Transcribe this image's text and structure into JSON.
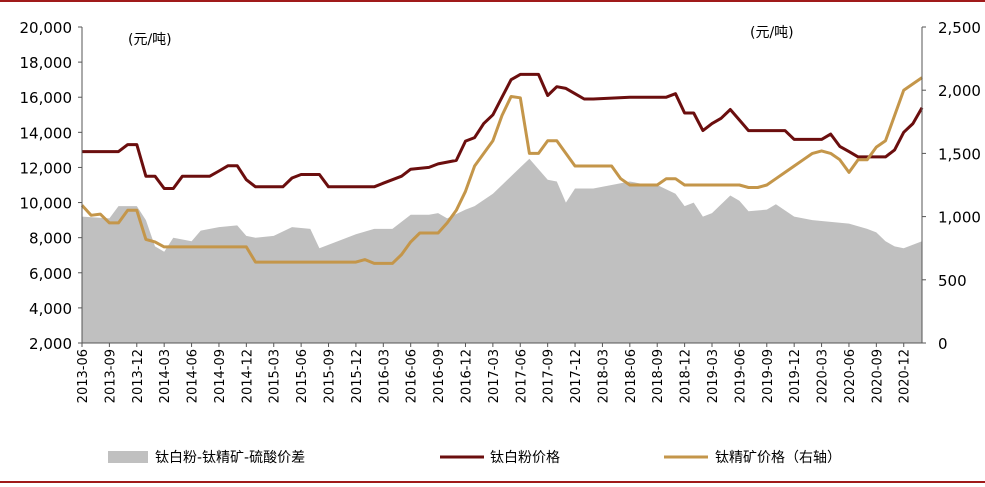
{
  "chart_data": {
    "type": "line",
    "left_unit": "(元/吨)",
    "right_unit": "(元/吨)",
    "left_axis": {
      "min": 2000,
      "max": 20000,
      "ticks": [
        "2,000",
        "4,000",
        "6,000",
        "8,000",
        "10,000",
        "12,000",
        "14,000",
        "16,000",
        "18,000",
        "20,000"
      ]
    },
    "right_axis": {
      "min": 0,
      "max": 2500,
      "ticks": [
        "0",
        "500",
        "1,000",
        "1,500",
        "2,000",
        "2,500"
      ]
    },
    "x_ticks": [
      "2013-06",
      "2013-09",
      "2013-12",
      "2014-03",
      "2014-06",
      "2014-09",
      "2014-12",
      "2015-03",
      "2015-06",
      "2015-09",
      "2015-12",
      "2016-03",
      "2016-06",
      "2016-09",
      "2016-12",
      "2017-03",
      "2017-06",
      "2017-09",
      "2017-12",
      "2018-03",
      "2018-06",
      "2018-09",
      "2018-12",
      "2019-03",
      "2019-06",
      "2019-09",
      "2019-12",
      "2020-03",
      "2020-06",
      "2020-09",
      "2020-12"
    ],
    "x_start": "2013-06",
    "x_end": "2021-02",
    "grid": false,
    "legend_position": "bottom",
    "series": [
      {
        "name": "钛白粉-钛精矿-硫酸价差",
        "type": "area",
        "axis": "left",
        "color": "#c0c0c0",
        "points": [
          [
            "2013-06",
            9200
          ],
          [
            "2013-09",
            9100
          ],
          [
            "2013-10",
            9800
          ],
          [
            "2013-12",
            9800
          ],
          [
            "2014-01",
            9000
          ],
          [
            "2014-02",
            7500
          ],
          [
            "2014-03",
            7200
          ],
          [
            "2014-04",
            8000
          ],
          [
            "2014-06",
            7800
          ],
          [
            "2014-07",
            8400
          ],
          [
            "2014-09",
            8600
          ],
          [
            "2014-11",
            8700
          ],
          [
            "2014-12",
            8100
          ],
          [
            "2015-01",
            8000
          ],
          [
            "2015-03",
            8100
          ],
          [
            "2015-05",
            8600
          ],
          [
            "2015-07",
            8500
          ],
          [
            "2015-08",
            7400
          ],
          [
            "2015-10",
            7800
          ],
          [
            "2015-12",
            8200
          ],
          [
            "2016-02",
            8500
          ],
          [
            "2016-04",
            8500
          ],
          [
            "2016-06",
            9300
          ],
          [
            "2016-08",
            9300
          ],
          [
            "2016-09",
            9400
          ],
          [
            "2016-10",
            9100
          ],
          [
            "2016-12",
            9600
          ],
          [
            "2017-01",
            9800
          ],
          [
            "2017-03",
            10500
          ],
          [
            "2017-04",
            11000
          ],
          [
            "2017-05",
            11500
          ],
          [
            "2017-06",
            12000
          ],
          [
            "2017-07",
            12500
          ],
          [
            "2017-09",
            11300
          ],
          [
            "2017-10",
            11200
          ],
          [
            "2017-11",
            10000
          ],
          [
            "2017-12",
            10800
          ],
          [
            "2018-02",
            10800
          ],
          [
            "2018-04",
            11000
          ],
          [
            "2018-06",
            11200
          ],
          [
            "2018-08",
            11000
          ],
          [
            "2018-09",
            11000
          ],
          [
            "2018-11",
            10500
          ],
          [
            "2018-12",
            9800
          ],
          [
            "2019-01",
            10000
          ],
          [
            "2019-02",
            9200
          ],
          [
            "2019-03",
            9400
          ],
          [
            "2019-05",
            10400
          ],
          [
            "2019-06",
            10100
          ],
          [
            "2019-07",
            9500
          ],
          [
            "2019-09",
            9600
          ],
          [
            "2019-10",
            9900
          ],
          [
            "2019-12",
            9200
          ],
          [
            "2020-02",
            9000
          ],
          [
            "2020-04",
            8900
          ],
          [
            "2020-06",
            8800
          ],
          [
            "2020-08",
            8500
          ],
          [
            "2020-09",
            8300
          ],
          [
            "2020-10",
            7800
          ],
          [
            "2020-11",
            7500
          ],
          [
            "2020-12",
            7400
          ],
          [
            "2021-02",
            7800
          ]
        ]
      },
      {
        "name": "钛白粉价格",
        "type": "line",
        "axis": "left",
        "color": "#6b0e0e",
        "points": [
          [
            "2013-06",
            12900
          ],
          [
            "2013-10",
            12900
          ],
          [
            "2013-11",
            13300
          ],
          [
            "2013-12",
            13300
          ],
          [
            "2014-01",
            11500
          ],
          [
            "2014-02",
            11500
          ],
          [
            "2014-03",
            10800
          ],
          [
            "2014-04",
            10800
          ],
          [
            "2014-05",
            11500
          ],
          [
            "2014-08",
            11500
          ],
          [
            "2014-09",
            11800
          ],
          [
            "2014-10",
            12100
          ],
          [
            "2014-11",
            12100
          ],
          [
            "2014-12",
            11300
          ],
          [
            "2015-01",
            10900
          ],
          [
            "2015-04",
            10900
          ],
          [
            "2015-05",
            11400
          ],
          [
            "2015-06",
            11600
          ],
          [
            "2015-08",
            11600
          ],
          [
            "2015-09",
            10900
          ],
          [
            "2016-02",
            10900
          ],
          [
            "2016-03",
            11100
          ],
          [
            "2016-05",
            11500
          ],
          [
            "2016-06",
            11900
          ],
          [
            "2016-08",
            12000
          ],
          [
            "2016-09",
            12200
          ],
          [
            "2016-11",
            12400
          ],
          [
            "2016-12",
            13500
          ],
          [
            "2017-01",
            13700
          ],
          [
            "2017-02",
            14500
          ],
          [
            "2017-03",
            15000
          ],
          [
            "2017-04",
            16000
          ],
          [
            "2017-05",
            17000
          ],
          [
            "2017-06",
            17300
          ],
          [
            "2017-08",
            17300
          ],
          [
            "2017-09",
            16100
          ],
          [
            "2017-10",
            16600
          ],
          [
            "2017-11",
            16500
          ],
          [
            "2017-12",
            16200
          ],
          [
            "2018-01",
            15900
          ],
          [
            "2018-02",
            15900
          ],
          [
            "2018-06",
            16000
          ],
          [
            "2018-10",
            16000
          ],
          [
            "2018-11",
            16200
          ],
          [
            "2018-12",
            15100
          ],
          [
            "2019-01",
            15100
          ],
          [
            "2019-02",
            14100
          ],
          [
            "2019-03",
            14500
          ],
          [
            "2019-04",
            14800
          ],
          [
            "2019-05",
            15300
          ],
          [
            "2019-06",
            14700
          ],
          [
            "2019-07",
            14100
          ],
          [
            "2019-11",
            14100
          ],
          [
            "2019-12",
            13600
          ],
          [
            "2020-03",
            13600
          ],
          [
            "2020-04",
            13900
          ],
          [
            "2020-05",
            13200
          ],
          [
            "2020-06",
            12900
          ],
          [
            "2020-07",
            12600
          ],
          [
            "2020-10",
            12600
          ],
          [
            "2020-11",
            13000
          ],
          [
            "2020-12",
            14000
          ],
          [
            "2021-01",
            14500
          ],
          [
            "2021-02",
            15400
          ]
        ]
      },
      {
        "name": "钛精矿价格（右轴）",
        "type": "line",
        "axis": "right",
        "color": "#c4964a",
        "points": [
          [
            "2013-06",
            1090
          ],
          [
            "2013-07",
            1010
          ],
          [
            "2013-08",
            1020
          ],
          [
            "2013-09",
            950
          ],
          [
            "2013-10",
            950
          ],
          [
            "2013-11",
            1050
          ],
          [
            "2013-12",
            1050
          ],
          [
            "2014-01",
            820
          ],
          [
            "2014-02",
            800
          ],
          [
            "2014-03",
            760
          ],
          [
            "2014-06",
            760
          ],
          [
            "2014-09",
            760
          ],
          [
            "2014-12",
            760
          ],
          [
            "2015-01",
            640
          ],
          [
            "2015-06",
            640
          ],
          [
            "2015-12",
            640
          ],
          [
            "2016-01",
            660
          ],
          [
            "2016-02",
            630
          ],
          [
            "2016-04",
            630
          ],
          [
            "2016-05",
            700
          ],
          [
            "2016-06",
            800
          ],
          [
            "2016-07",
            870
          ],
          [
            "2016-09",
            870
          ],
          [
            "2016-10",
            950
          ],
          [
            "2016-11",
            1050
          ],
          [
            "2016-12",
            1200
          ],
          [
            "2017-01",
            1400
          ],
          [
            "2017-03",
            1600
          ],
          [
            "2017-04",
            1800
          ],
          [
            "2017-05",
            1950
          ],
          [
            "2017-06",
            1940
          ],
          [
            "2017-07",
            1500
          ],
          [
            "2017-08",
            1500
          ],
          [
            "2017-09",
            1600
          ],
          [
            "2017-10",
            1600
          ],
          [
            "2017-11",
            1500
          ],
          [
            "2017-12",
            1400
          ],
          [
            "2018-04",
            1400
          ],
          [
            "2018-05",
            1300
          ],
          [
            "2018-06",
            1250
          ],
          [
            "2018-09",
            1250
          ],
          [
            "2018-10",
            1300
          ],
          [
            "2018-11",
            1300
          ],
          [
            "2018-12",
            1250
          ],
          [
            "2019-04",
            1250
          ],
          [
            "2019-06",
            1250
          ],
          [
            "2019-07",
            1230
          ],
          [
            "2019-08",
            1230
          ],
          [
            "2019-09",
            1250
          ],
          [
            "2019-10",
            1300
          ],
          [
            "2019-11",
            1350
          ],
          [
            "2019-12",
            1400
          ],
          [
            "2020-01",
            1450
          ],
          [
            "2020-02",
            1500
          ],
          [
            "2020-03",
            1520
          ],
          [
            "2020-04",
            1500
          ],
          [
            "2020-05",
            1450
          ],
          [
            "2020-06",
            1350
          ],
          [
            "2020-07",
            1450
          ],
          [
            "2020-08",
            1450
          ],
          [
            "2020-09",
            1550
          ],
          [
            "2020-10",
            1600
          ],
          [
            "2020-11",
            1800
          ],
          [
            "2020-12",
            2000
          ],
          [
            "2021-01",
            2050
          ],
          [
            "2021-02",
            2100
          ]
        ]
      }
    ]
  }
}
